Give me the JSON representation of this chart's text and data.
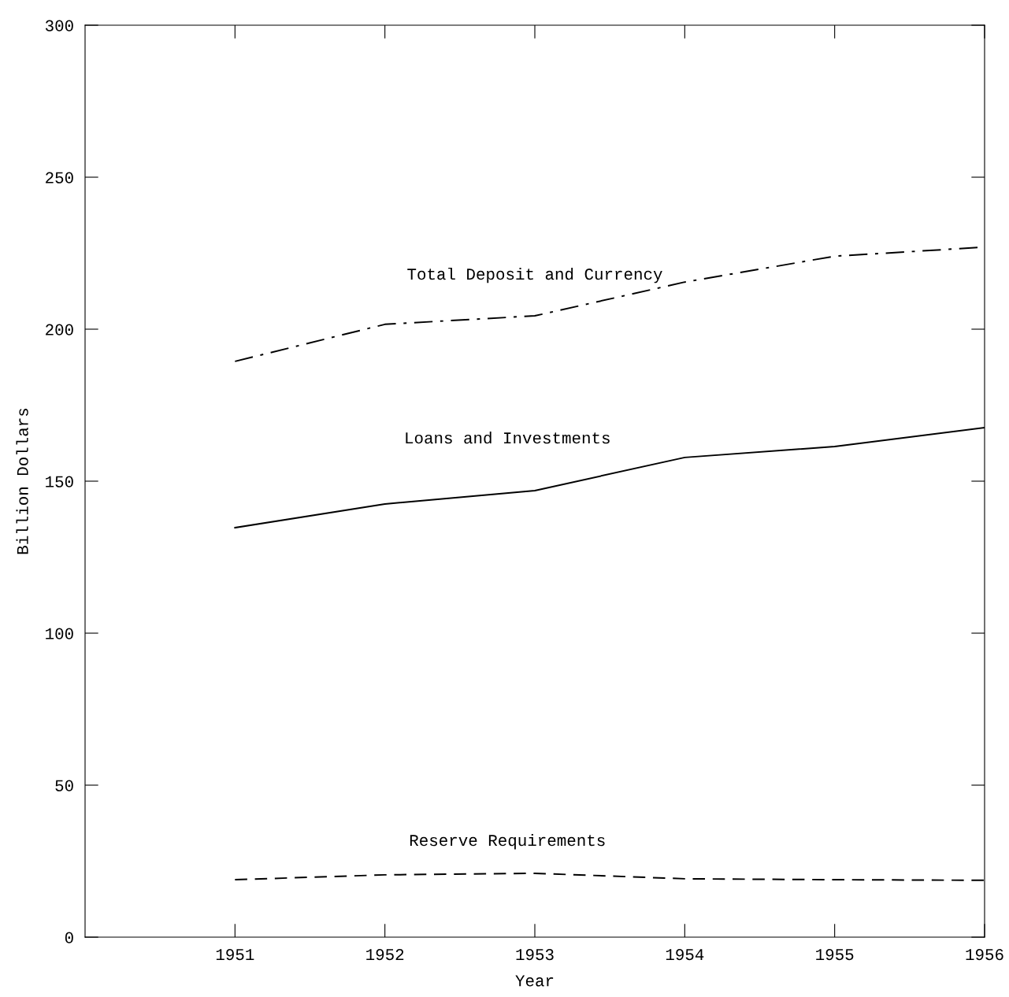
{
  "chart_data": {
    "type": "line",
    "xlabel": "Year",
    "ylabel": "Billion Dollars",
    "x": [
      1951,
      1952,
      1953,
      1954,
      1955,
      1956
    ],
    "xlim": [
      1950,
      1956
    ],
    "xticks": [
      1951,
      1952,
      1953,
      1954,
      1955,
      1956
    ],
    "ylim": [
      0,
      300
    ],
    "yticks": [
      0,
      50,
      100,
      150,
      200,
      250,
      300
    ],
    "grid": false,
    "legend": false,
    "marker": "none",
    "series": [
      {
        "name": "Total Deposit and Currency",
        "color": "#000000",
        "line_style": "dashdot",
        "values": [
          189.4,
          201.6,
          204.4,
          215.5,
          224,
          227
        ]
      },
      {
        "name": "Loans and Investments",
        "color": "#000000",
        "line_style": "solid",
        "values": [
          134.7,
          142.5,
          146.9,
          157.8,
          161.4,
          167.6
        ]
      },
      {
        "name": "Reserve Requirements",
        "color": "#000000",
        "line_style": "dashed",
        "values": [
          18.9,
          20.5,
          21,
          19.2,
          18.9,
          18.7
        ]
      }
    ]
  }
}
